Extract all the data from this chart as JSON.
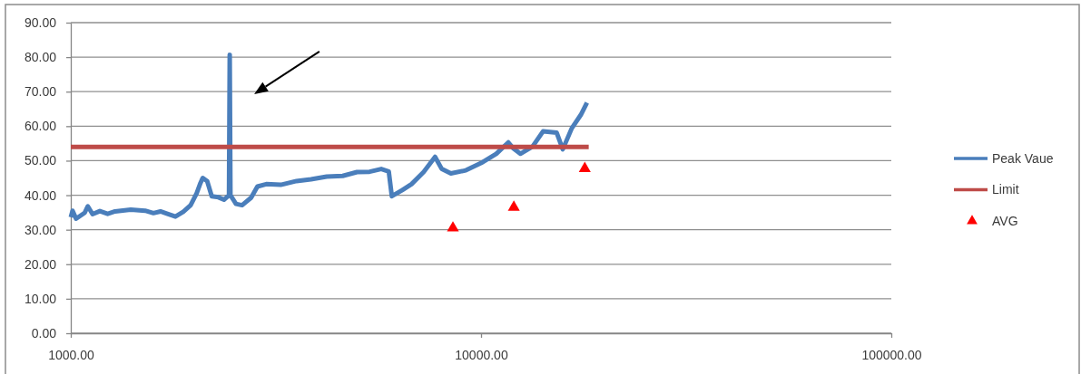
{
  "chart_data": {
    "type": "line",
    "log": "x",
    "grid": "y",
    "legend": "right",
    "line_style": "solid",
    "xlim": [
      1000,
      100000
    ],
    "xticks": [
      {
        "value": 1000,
        "label": "1000.00"
      },
      {
        "value": 10000,
        "label": "10000.00"
      },
      {
        "value": 100000,
        "label": "100000.00"
      }
    ],
    "ylim": [
      0,
      90
    ],
    "yticks": [
      {
        "value": 0,
        "label": "0.00"
      },
      {
        "value": 10,
        "label": "10.00"
      },
      {
        "value": 20,
        "label": "20.00"
      },
      {
        "value": 30,
        "label": "30.00"
      },
      {
        "value": 40,
        "label": "40.00"
      },
      {
        "value": 50,
        "label": "50.00"
      },
      {
        "value": 60,
        "label": "60.00"
      },
      {
        "value": 70,
        "label": "70.00"
      },
      {
        "value": 80,
        "label": "80.00"
      },
      {
        "value": 90,
        "label": "90.00"
      }
    ],
    "series": [
      {
        "name": "Peak Vaue",
        "color": "#4a7ebb",
        "x": [
          1000,
          1010,
          1030,
          1081,
          1100,
          1130,
          1177,
          1230,
          1282,
          1400,
          1518,
          1590,
          1654,
          1720,
          1799,
          1880,
          1959,
          2027,
          2070,
          2097,
          2150,
          2206,
          2290,
          2362,
          2430,
          2440,
          2450,
          2527,
          2615,
          2752,
          2850,
          2995,
          3250,
          3549,
          3850,
          4206,
          4600,
          4985,
          5350,
          5711,
          5957,
          6061,
          6430,
          6767,
          7244,
          7725,
          8022,
          8441,
          9184,
          10000,
          10890,
          11654,
          12000,
          12470,
          13350,
          14160,
          15290,
          15820,
          16640,
          17510,
          18120
        ],
        "values": [
          33.6,
          35.5,
          33.2,
          34.9,
          36.8,
          34.5,
          35.4,
          34.6,
          35.3,
          35.8,
          35.5,
          34.8,
          35.3,
          34.6,
          33.8,
          35.2,
          37.1,
          40.6,
          43.5,
          45.0,
          44.1,
          39.7,
          39.4,
          38.7,
          40.0,
          80.7,
          40.0,
          37.5,
          37.1,
          39.3,
          42.5,
          43.2,
          43.0,
          44.1,
          44.6,
          45.4,
          45.6,
          46.7,
          46.8,
          47.6,
          46.9,
          39.7,
          41.5,
          43.2,
          46.7,
          51.1,
          47.6,
          46.3,
          47.2,
          49.3,
          52.0,
          55.3,
          53.5,
          52.0,
          54.1,
          58.5,
          58.1,
          53.3,
          59.4,
          63.3,
          66.8
        ]
      },
      {
        "name": "Limit",
        "color": "#be4b48",
        "x": [
          1000,
          18300
        ],
        "values": [
          54,
          54
        ]
      },
      {
        "name": "AVG",
        "type": "scatter",
        "marker": "triangle",
        "color": "#ff0000",
        "x": [
          8540,
          12020,
          17900
        ],
        "values": [
          30.5,
          36.5,
          47.7
        ]
      }
    ]
  }
}
